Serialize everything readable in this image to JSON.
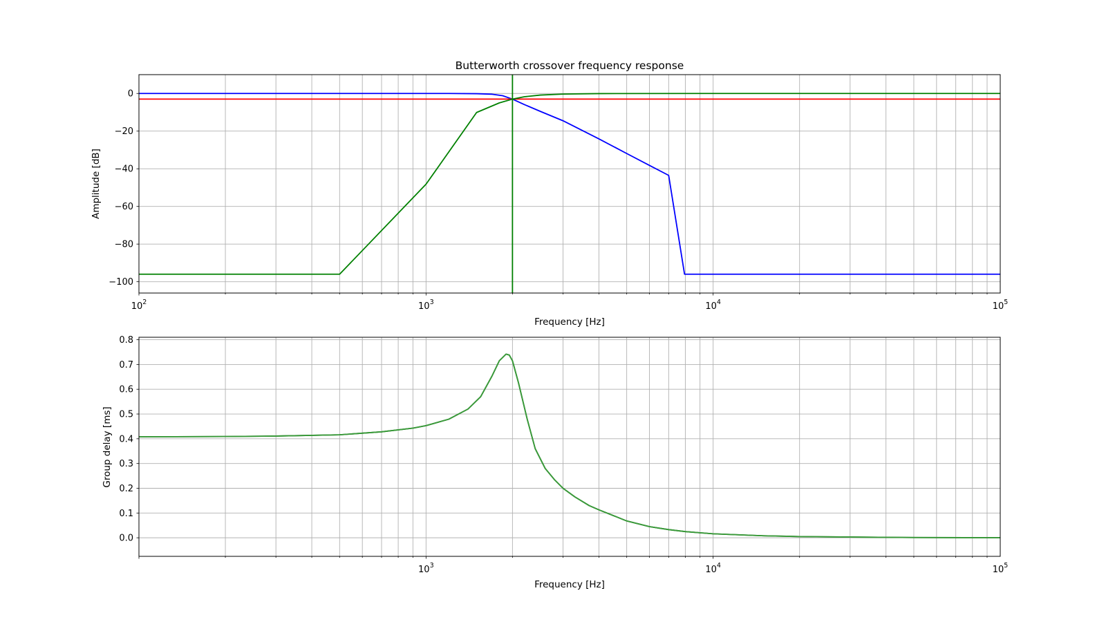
{
  "chart_data": [
    {
      "type": "line",
      "title": "Butterworth crossover frequency response",
      "xlabel": "Frequency [Hz]",
      "ylabel": "Amplitude [dB]",
      "xscale": "log",
      "xlim": [
        100,
        100000
      ],
      "ylim": [
        -106,
        10
      ],
      "grid": true,
      "x_ticks": [
        {
          "base": "10",
          "exp": "2"
        },
        {
          "base": "10",
          "exp": "3"
        },
        {
          "base": "10",
          "exp": "4"
        },
        {
          "base": "10",
          "exp": "5"
        }
      ],
      "y_ticks": [
        "0",
        "−20",
        "−40",
        "−60",
        "−80",
        "−100"
      ],
      "series": [
        {
          "color": "#0000ff",
          "x": [
            100,
            1000,
            1200,
            1500,
            1700,
            1850,
            2000,
            2200,
            2500,
            3000,
            4000,
            5000,
            6000,
            7000,
            7950,
            10000,
            100000
          ],
          "y": [
            0,
            -0.001,
            -0.01,
            -0.11,
            -0.4,
            -1.2,
            -3.01,
            -5.9,
            -9.5,
            -14.5,
            -24.1,
            -31.9,
            -38.2,
            -43.5,
            -96,
            -96,
            -96
          ]
        },
        {
          "color": "#ff0000",
          "x": [
            100,
            100000
          ],
          "y": [
            -3,
            -3
          ]
        },
        {
          "color": "#008000",
          "x": [
            100,
            500,
            1000,
            1500,
            1800,
            2000,
            2200,
            2500,
            3000,
            4000,
            10000,
            100000
          ],
          "y": [
            -96,
            -96,
            -48.2,
            -10.1,
            -5.0,
            -3.01,
            -1.75,
            -0.85,
            -0.31,
            -0.07,
            0,
            0
          ]
        },
        {
          "color": "#008000",
          "x": [
            2000,
            2000
          ],
          "y": [
            -106,
            10
          ]
        }
      ]
    },
    {
      "type": "line",
      "title": "",
      "xlabel": "Frequency [Hz]",
      "ylabel": "Group delay [ms]",
      "xscale": "log",
      "xlim": [
        100,
        100000
      ],
      "ylim": [
        -0.075,
        0.81
      ],
      "grid": true,
      "x_ticks": [
        {
          "base": "10",
          "exp": "3"
        },
        {
          "base": "10",
          "exp": "4"
        },
        {
          "base": "10",
          "exp": "5"
        }
      ],
      "y_ticks": [
        "0.0",
        "0.1",
        "0.2",
        "0.3",
        "0.4",
        "0.5",
        "0.6",
        "0.7",
        "0.8"
      ],
      "series": [
        {
          "color": "#006400",
          "x": [
            100,
            200,
            300,
            500,
            700,
            900,
            1000,
            1200,
            1400,
            1550,
            1700,
            1800,
            1900,
            1950,
            2000,
            2100,
            2250,
            2400,
            2600,
            2800,
            3000,
            3300,
            3700,
            4000,
            5000,
            6000,
            7000,
            8000,
            10000,
            15000,
            20000,
            30000,
            50000,
            100000
          ],
          "y": [
            0.408,
            0.409,
            0.411,
            0.416,
            0.428,
            0.443,
            0.453,
            0.479,
            0.52,
            0.57,
            0.655,
            0.715,
            0.742,
            0.738,
            0.715,
            0.625,
            0.48,
            0.36,
            0.28,
            0.235,
            0.2,
            0.165,
            0.13,
            0.113,
            0.068,
            0.045,
            0.033,
            0.025,
            0.016,
            0.008,
            0.005,
            0.003,
            0.001,
            0.0003
          ]
        },
        {
          "color": "#3a9a3a",
          "x": [
            100,
            200,
            300,
            500,
            700,
            900,
            1000,
            1200,
            1400,
            1550,
            1700,
            1800,
            1900,
            1950,
            2000,
            2100,
            2250,
            2400,
            2600,
            2800,
            3000,
            3300,
            3700,
            4000,
            5000,
            6000,
            7000,
            8000,
            10000,
            15000,
            20000,
            30000,
            50000,
            100000
          ],
          "y": [
            0.408,
            0.409,
            0.411,
            0.416,
            0.428,
            0.443,
            0.453,
            0.479,
            0.52,
            0.57,
            0.655,
            0.715,
            0.742,
            0.738,
            0.715,
            0.625,
            0.48,
            0.36,
            0.28,
            0.235,
            0.2,
            0.165,
            0.13,
            0.113,
            0.068,
            0.045,
            0.033,
            0.025,
            0.016,
            0.008,
            0.005,
            0.003,
            0.001,
            0.0003
          ]
        }
      ]
    }
  ]
}
